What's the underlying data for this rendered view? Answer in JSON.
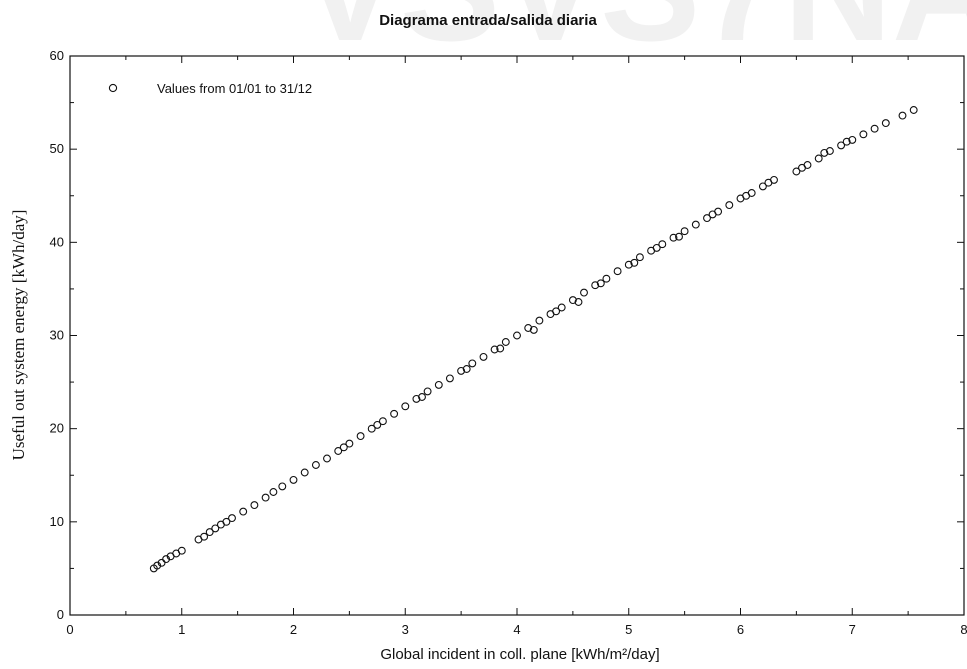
{
  "chart_data": {
    "type": "scatter",
    "title": "Diagrama entrada/salida diaria",
    "xlabel": "Global incident in coll. plane [kWh/m²/day]",
    "ylabel": "Useful out system energy [kWh/day]",
    "xlim": [
      0,
      8
    ],
    "ylim": [
      0,
      60
    ],
    "x_ticks": [
      0,
      1,
      2,
      3,
      4,
      5,
      6,
      7,
      8
    ],
    "y_ticks": [
      0,
      10,
      20,
      30,
      40,
      50,
      60
    ],
    "grid": false,
    "legend_position": "top-left",
    "marker": "open-circle",
    "series": [
      {
        "name": "Values from 01/01 to 31/12",
        "points": [
          [
            0.75,
            5.0
          ],
          [
            0.78,
            5.3
          ],
          [
            0.82,
            5.6
          ],
          [
            0.86,
            6.0
          ],
          [
            0.9,
            6.3
          ],
          [
            0.95,
            6.6
          ],
          [
            1.0,
            6.9
          ],
          [
            1.15,
            8.1
          ],
          [
            1.2,
            8.4
          ],
          [
            1.25,
            8.9
          ],
          [
            1.3,
            9.3
          ],
          [
            1.35,
            9.7
          ],
          [
            1.4,
            10.0
          ],
          [
            1.45,
            10.4
          ],
          [
            1.55,
            11.1
          ],
          [
            1.65,
            11.8
          ],
          [
            1.75,
            12.6
          ],
          [
            1.82,
            13.2
          ],
          [
            1.9,
            13.8
          ],
          [
            2.0,
            14.5
          ],
          [
            2.1,
            15.3
          ],
          [
            2.2,
            16.1
          ],
          [
            2.3,
            16.8
          ],
          [
            2.4,
            17.6
          ],
          [
            2.5,
            18.4
          ],
          [
            2.6,
            19.2
          ],
          [
            2.7,
            20.0
          ],
          [
            2.8,
            20.8
          ],
          [
            2.9,
            21.6
          ],
          [
            3.0,
            22.4
          ],
          [
            3.1,
            23.2
          ],
          [
            3.2,
            24.0
          ],
          [
            3.3,
            24.7
          ],
          [
            3.4,
            25.4
          ],
          [
            3.5,
            26.2
          ],
          [
            3.6,
            27.0
          ],
          [
            3.7,
            27.7
          ],
          [
            3.8,
            28.5
          ],
          [
            3.9,
            29.3
          ],
          [
            4.0,
            30.0
          ],
          [
            4.1,
            30.8
          ],
          [
            4.2,
            31.6
          ],
          [
            4.3,
            32.3
          ],
          [
            4.4,
            33.0
          ],
          [
            4.5,
            33.8
          ],
          [
            4.6,
            34.6
          ],
          [
            4.7,
            35.4
          ],
          [
            4.8,
            36.1
          ],
          [
            4.9,
            36.9
          ],
          [
            5.0,
            37.6
          ],
          [
            5.1,
            38.4
          ],
          [
            5.2,
            39.1
          ],
          [
            5.3,
            39.8
          ],
          [
            5.4,
            40.5
          ],
          [
            5.5,
            41.2
          ],
          [
            5.6,
            41.9
          ],
          [
            5.7,
            42.6
          ],
          [
            5.8,
            43.3
          ],
          [
            5.9,
            44.0
          ],
          [
            6.0,
            44.7
          ],
          [
            6.1,
            45.3
          ],
          [
            6.2,
            46.0
          ],
          [
            6.3,
            46.7
          ],
          [
            6.5,
            47.6
          ],
          [
            6.6,
            48.3
          ],
          [
            6.7,
            49.0
          ],
          [
            6.8,
            49.8
          ],
          [
            6.9,
            50.4
          ],
          [
            7.0,
            51.0
          ],
          [
            7.1,
            51.6
          ],
          [
            7.2,
            52.2
          ],
          [
            7.3,
            52.8
          ],
          [
            7.45,
            53.6
          ],
          [
            7.55,
            54.2
          ],
          [
            2.45,
            18.0
          ],
          [
            2.75,
            20.4
          ],
          [
            3.15,
            23.4
          ],
          [
            3.55,
            26.4
          ],
          [
            3.85,
            28.6
          ],
          [
            4.15,
            30.6
          ],
          [
            4.35,
            32.6
          ],
          [
            4.55,
            33.6
          ],
          [
            4.75,
            35.6
          ],
          [
            5.05,
            37.8
          ],
          [
            5.25,
            39.4
          ],
          [
            5.45,
            40.6
          ],
          [
            5.75,
            43.0
          ],
          [
            6.05,
            45.0
          ],
          [
            6.25,
            46.4
          ],
          [
            6.55,
            48.0
          ],
          [
            6.75,
            49.6
          ],
          [
            6.95,
            50.8
          ]
        ]
      }
    ]
  }
}
